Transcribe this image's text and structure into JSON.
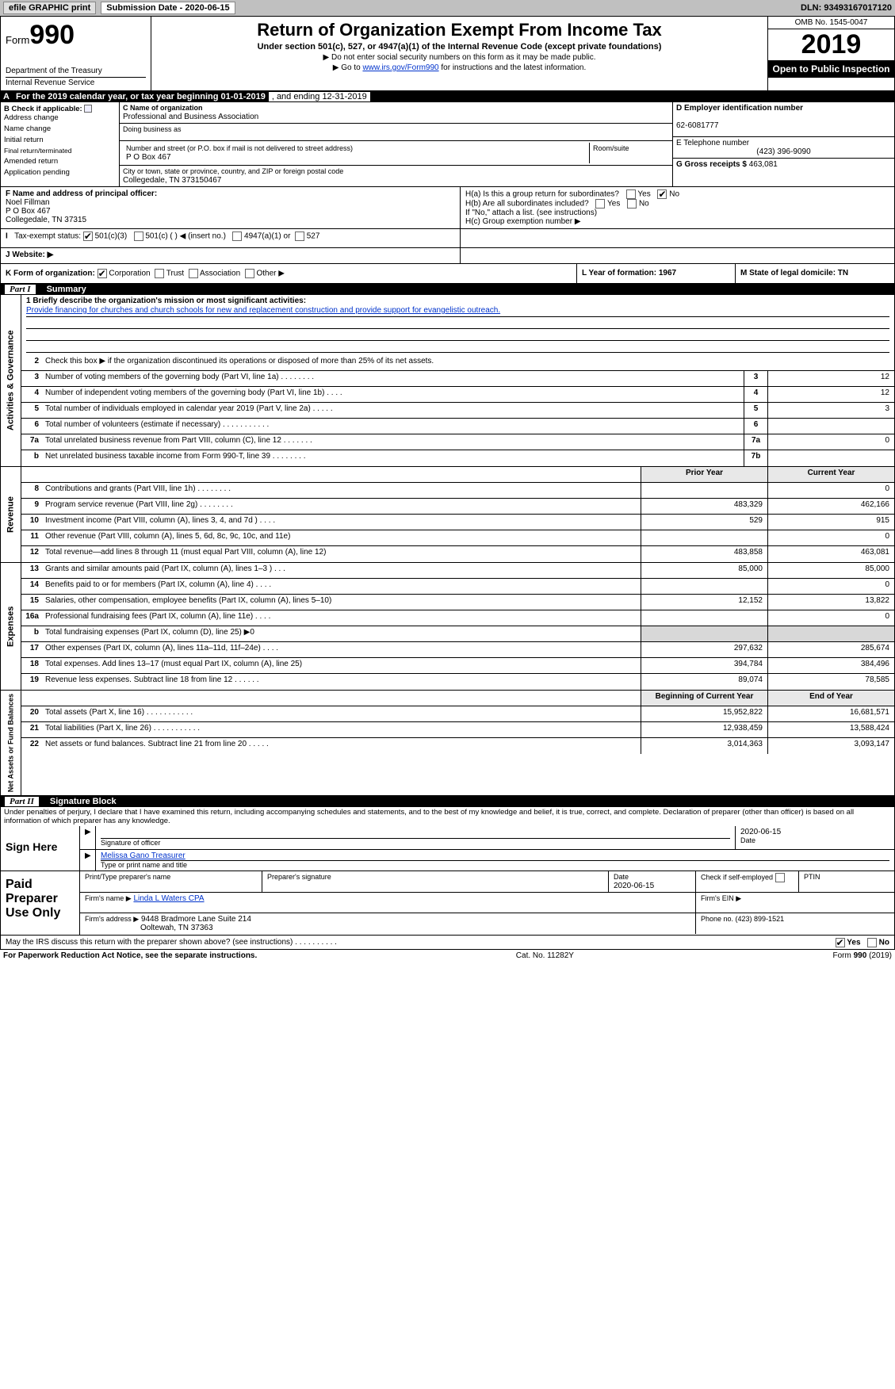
{
  "topbar": {
    "efile": "efile GRAPHIC print",
    "sub_label": "Submission Date - 2020-06-15",
    "dln": "DLN: 93493167017120"
  },
  "header": {
    "form_word": "Form",
    "form_no": "990",
    "dept": "Department of the Treasury",
    "irs": "Internal Revenue Service",
    "title": "Return of Organization Exempt From Income Tax",
    "sub": "Under section 501(c), 527, or 4947(a)(1) of the Internal Revenue Code (except private foundations)",
    "note1": "▶ Do not enter social security numbers on this form as it may be made public.",
    "note2_pre": "▶ Go to ",
    "note2_link": "www.irs.gov/Form990",
    "note2_post": " for instructions and the latest information.",
    "omb": "OMB No. 1545-0047",
    "year": "2019",
    "open": "Open to Public Inspection"
  },
  "rowA": {
    "label": "A",
    "text": "For the 2019 calendar year, or tax year beginning 01-01-2019",
    "end": ", and ending 12-31-2019"
  },
  "B": {
    "hdr": "B Check if applicable:",
    "items": [
      "Address change",
      "Name change",
      "Initial return",
      "Final return/terminated",
      "Amended return",
      "Application pending"
    ]
  },
  "C": {
    "name_lbl": "C Name of organization",
    "name": "Professional and Business Association",
    "dba_lbl": "Doing business as",
    "addr_lbl": "Number and street (or P.O. box if mail is not delivered to street address)",
    "addr": "P O Box 467",
    "room_lbl": "Room/suite",
    "city_lbl": "City or town, state or province, country, and ZIP or foreign postal code",
    "city": "Collegedale, TN  373150467"
  },
  "D": {
    "lbl": "D Employer identification number",
    "val": "62-6081777"
  },
  "E": {
    "lbl": "E Telephone number",
    "val": "(423) 396-9090"
  },
  "G": {
    "lbl": "G Gross receipts $",
    "val": "463,081"
  },
  "F": {
    "lbl": "F Name and address of principal officer:",
    "l1": "Noel Fillman",
    "l2": "P O Box 467",
    "l3": "Collegedale, TN  37315"
  },
  "H": {
    "a": "H(a)    Is this a group return for subordinates?",
    "b": "H(b)    Are all subordinates included?",
    "b2": "If \"No,\" attach a list. (see instructions)",
    "c": "H(c)    Group exemption number ▶",
    "yes": "Yes",
    "no": "No"
  },
  "I": {
    "lbl": "Tax-exempt status:",
    "o1": "501(c)(3)",
    "o2": "501(c) (   ) ◀ (insert no.)",
    "o3": "4947(a)(1) or",
    "o4": "527"
  },
  "J": {
    "lbl": "J   Website: ▶"
  },
  "K": {
    "lbl": "K Form of organization:",
    "o1": "Corporation",
    "o2": "Trust",
    "o3": "Association",
    "o4": "Other ▶"
  },
  "L": {
    "lbl": "L Year of formation: 1967"
  },
  "M": {
    "lbl": "M State of legal domicile: TN"
  },
  "part1": {
    "tag": "Part I",
    "title": "Summary"
  },
  "gov": {
    "l1": "1   Briefly describe the organization's mission or most significant activities:",
    "l1_text": "Provide financing for churches and church schools for new and replacement construction and provide support for evangelistic outreach.",
    "l2": "Check this box ▶       if the organization discontinued its operations or disposed of more than 25% of its net assets.",
    "rows": [
      {
        "n": "3",
        "d": "Number of voting members of the governing body (Part VI, line 1a)   .    .    .    .    .    .    .    .",
        "b": "3",
        "v": "12"
      },
      {
        "n": "4",
        "d": "Number of independent voting members of the governing body (Part VI, line 1b)  .    .    .    .",
        "b": "4",
        "v": "12"
      },
      {
        "n": "5",
        "d": "Total number of individuals employed in calendar year 2019 (Part V, line 2a)  .    .    .    .    .",
        "b": "5",
        "v": "3"
      },
      {
        "n": "6",
        "d": "Total number of volunteers (estimate if necessary)  .    .    .    .    .    .    .    .    .    .    .",
        "b": "6",
        "v": ""
      },
      {
        "n": "7a",
        "d": "Total unrelated business revenue from Part VIII, column (C), line 12  .    .    .    .    .    .    .",
        "b": "7a",
        "v": "0"
      },
      {
        "n": "b",
        "d": "Net unrelated business taxable income from Form 990-T, line 39  .    .    .    .    .    .    .    .",
        "b": "7b",
        "v": ""
      }
    ]
  },
  "cols": {
    "prior": "Prior Year",
    "current": "Current Year"
  },
  "rev": [
    {
      "n": "8",
      "d": "Contributions and grants (Part VIII, line 1h)  .    .    .    .    .    .    .    .",
      "p": "",
      "c": "0"
    },
    {
      "n": "9",
      "d": "Program service revenue (Part VIII, line 2g)  .    .    .    .    .    .    .    .",
      "p": "483,329",
      "c": "462,166"
    },
    {
      "n": "10",
      "d": "Investment income (Part VIII, column (A), lines 3, 4, and 7d )  .    .    .    .",
      "p": "529",
      "c": "915"
    },
    {
      "n": "11",
      "d": "Other revenue (Part VIII, column (A), lines 5, 6d, 8c, 9c, 10c, and 11e)",
      "p": "",
      "c": "0"
    },
    {
      "n": "12",
      "d": "Total revenue—add lines 8 through 11 (must equal Part VIII, column (A), line 12)",
      "p": "483,858",
      "c": "463,081"
    }
  ],
  "exp": [
    {
      "n": "13",
      "d": "Grants and similar amounts paid (Part IX, column (A), lines 1–3 )  .    .    .",
      "p": "85,000",
      "c": "85,000"
    },
    {
      "n": "14",
      "d": "Benefits paid to or for members (Part IX, column (A), line 4)  .    .    .    .",
      "p": "",
      "c": "0"
    },
    {
      "n": "15",
      "d": "Salaries, other compensation, employee benefits (Part IX, column (A), lines 5–10)",
      "p": "12,152",
      "c": "13,822"
    },
    {
      "n": "16a",
      "d": "Professional fundraising fees (Part IX, column (A), line 11e)  .    .    .    .",
      "p": "",
      "c": "0"
    },
    {
      "n": "b",
      "d": "Total fundraising expenses (Part IX, column (D), line 25) ▶0",
      "p": "—sh—",
      "c": "—sh—"
    },
    {
      "n": "17",
      "d": "Other expenses (Part IX, column (A), lines 11a–11d, 11f–24e)  .    .    .    .",
      "p": "297,632",
      "c": "285,674"
    },
    {
      "n": "18",
      "d": "Total expenses. Add lines 13–17 (must equal Part IX, column (A), line 25)",
      "p": "394,784",
      "c": "384,496"
    },
    {
      "n": "19",
      "d": "Revenue less expenses. Subtract line 18 from line 12  .    .    .    .    .    .",
      "p": "89,074",
      "c": "78,585"
    }
  ],
  "na_cols": {
    "beg": "Beginning of Current Year",
    "end": "End of Year"
  },
  "na": [
    {
      "n": "20",
      "d": "Total assets (Part X, line 16)  .    .    .    .    .    .    .    .    .    .    .",
      "p": "15,952,822",
      "c": "16,681,571"
    },
    {
      "n": "21",
      "d": "Total liabilities (Part X, line 26)  .    .    .    .    .    .    .    .    .    .    .",
      "p": "12,938,459",
      "c": "13,588,424"
    },
    {
      "n": "22",
      "d": "Net assets or fund balances. Subtract line 21 from line 20  .    .    .    .    .",
      "p": "3,014,363",
      "c": "3,093,147"
    }
  ],
  "vtabs": {
    "gov": "Activities & Governance",
    "rev": "Revenue",
    "exp": "Expenses",
    "na": "Net Assets or Fund Balances"
  },
  "part2": {
    "tag": "Part II",
    "title": "Signature Block"
  },
  "perjury": "Under penalties of perjury, I declare that I have examined this return, including accompanying schedules and statements, and to the best of my knowledge and belief, it is true, correct, and complete. Declaration of preparer (other than officer) is based on all information of which preparer has any knowledge.",
  "sign": {
    "here": "Sign Here",
    "sig_officer": "Signature of officer",
    "date": "2020-06-15",
    "date_lbl": "Date",
    "name": "Melissa Gano Treasurer",
    "name_lbl": "Type or print name and title"
  },
  "paid": {
    "lbl": "Paid Preparer Use Only",
    "r1": {
      "a": "Print/Type preparer's name",
      "b": "Preparer's signature",
      "c": "Date",
      "cval": "2020-06-15",
      "d": "Check         if self-employed",
      "e": "PTIN"
    },
    "r2": {
      "a": "Firm's name      ▶",
      "aval": "Linda L Waters CPA",
      "b": "Firm's EIN ▶"
    },
    "r3": {
      "a": "Firm's address ▶",
      "aval": "9448 Bradmore Lane Suite 214",
      "b": "Phone no. (423) 899-1521"
    },
    "r3b": "Ooltewah, TN  37363"
  },
  "may": {
    "text": "May the IRS discuss this return with the preparer shown above? (see instructions)  .    .    .    .    .    .    .    .    .    .",
    "yes": "Yes",
    "no": "No"
  },
  "foot": {
    "left": "For Paperwork Reduction Act Notice, see the separate instructions.",
    "mid": "Cat. No. 11282Y",
    "right": "Form 990 (2019)"
  },
  "colors": {
    "topbar": "#c0c0c0",
    "link": "#0033cc",
    "shade": "#d8d8d8"
  }
}
